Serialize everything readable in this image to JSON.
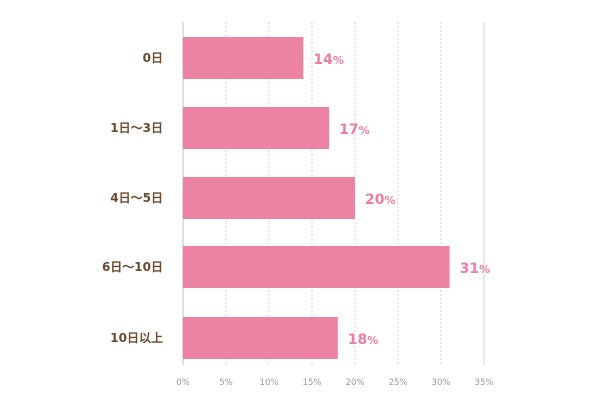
{
  "chart_data": {
    "type": "bar",
    "orientation": "horizontal",
    "categories": [
      "0日",
      "1日〜3日",
      "4日〜5日",
      "6日〜10日",
      "10日以上"
    ],
    "values": [
      14,
      17,
      20,
      31,
      18
    ],
    "value_labels": [
      "14",
      "17",
      "20",
      "31",
      "18"
    ],
    "value_suffix": "%",
    "xlim": [
      0,
      35
    ],
    "xticks": [
      0,
      5,
      10,
      15,
      20,
      25,
      30,
      35
    ],
    "xtick_labels": [
      "0%",
      "5%",
      "10%",
      "15%",
      "20%",
      "25%",
      "30%",
      "35%"
    ],
    "grid": true,
    "legend": "none",
    "title": "",
    "xlabel": "",
    "ylabel": ""
  },
  "colors": {
    "bar": "#ed83a3",
    "category_text": "#6b4a2f",
    "value_text": "#ee7ea1",
    "tick_text": "#999999",
    "grid": "#c8c8c8",
    "axis": "#bdbdbd",
    "right_border": "#e6d9cc"
  }
}
